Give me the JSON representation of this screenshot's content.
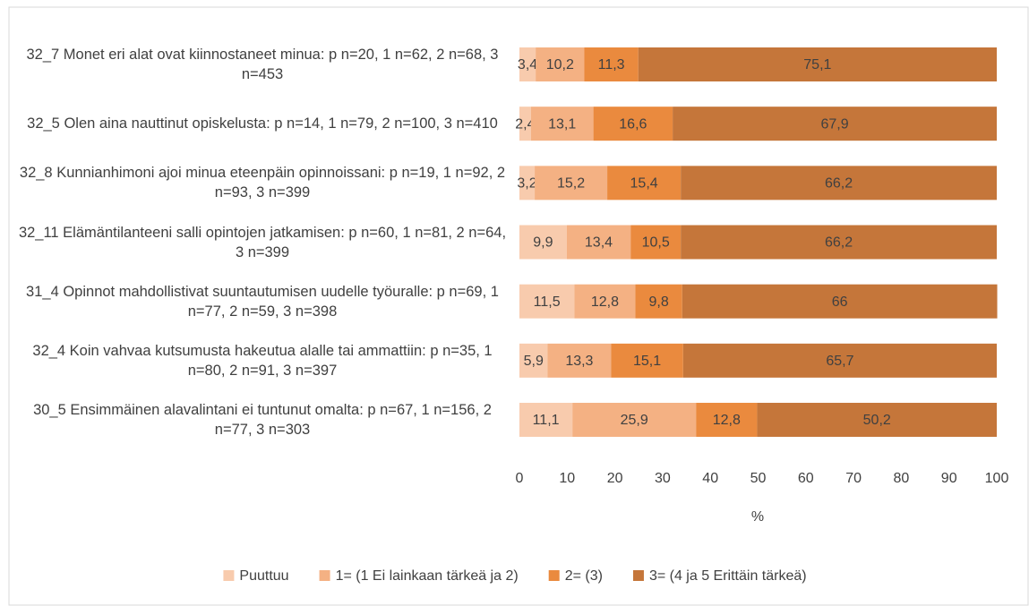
{
  "chart_data": {
    "type": "stacked_barh",
    "categories": [
      "32_7 Monet eri alat ovat kiinnostaneet minua: p n=20, 1 n=62, 2 n=68, 3 n=453",
      "32_5 Olen aina nauttinut opiskelusta: p n=14, 1 n=79, 2 n=100, 3 n=410",
      "32_8 Kunnianhimoni ajoi minua eteenpäin opinnoissani: p n=19, 1 n=92, 2 n=93, 3 n=399",
      "32_11 Elämäntilanteeni salli opintojen jatkamisen: p n=60, 1 n=81, 2 n=64, 3 n=399",
      "31_4 Opinnot mahdollistivat suuntautumisen uudelle työuralle: p n=69, 1 n=77, 2 n=59, 3 n=398",
      "32_4 Koin vahvaa kutsumusta hakeutua alalle tai ammattiin: p n=35, 1 n=80, 2 n=91, 3 n=397",
      "30_5 Ensimmäinen alavalintani ei tuntunut omalta: p n=67, 1 n=156, 2 n=77, 3 n=303"
    ],
    "series": [
      {
        "name": "Puuttuu",
        "color": "#f8cbad",
        "values": [
          3.4,
          2.4,
          3.2,
          9.9,
          11.5,
          5.9,
          11.1
        ],
        "value_labels": [
          "3,4",
          "2,4",
          "3,2",
          "9,9",
          "11,5",
          "5,9",
          "11,1"
        ]
      },
      {
        "name": "1= (1 Ei lainkaan tärkeä ja 2)",
        "color": "#f4b183",
        "values": [
          10.2,
          13.1,
          15.2,
          13.4,
          12.8,
          13.3,
          25.9
        ],
        "value_labels": [
          "10,2",
          "13,1",
          "15,2",
          "13,4",
          "12,8",
          "13,3",
          "25,9"
        ]
      },
      {
        "name": "2= (3)",
        "color": "#ea8a3e",
        "values": [
          11.3,
          16.6,
          15.4,
          10.5,
          9.8,
          15.1,
          12.8
        ],
        "value_labels": [
          "11,3",
          "16,6",
          "15,4",
          "10,5",
          "9,8",
          "15,1",
          "12,8"
        ]
      },
      {
        "name": "3= (4 ja 5 Erittäin tärkeä)",
        "color": "#c5763a",
        "values": [
          75.1,
          67.9,
          66.2,
          66.2,
          66,
          65.7,
          50.2
        ],
        "value_labels": [
          "75,1",
          "67,9",
          "66,2",
          "66,2",
          "66",
          "65,7",
          "50,2"
        ]
      }
    ],
    "xlabel": "%",
    "xlim": [
      0,
      100
    ],
    "xticks": [
      0,
      10,
      20,
      30,
      40,
      50,
      60,
      70,
      80,
      90,
      100
    ],
    "grid": false,
    "legend": "bottom"
  }
}
